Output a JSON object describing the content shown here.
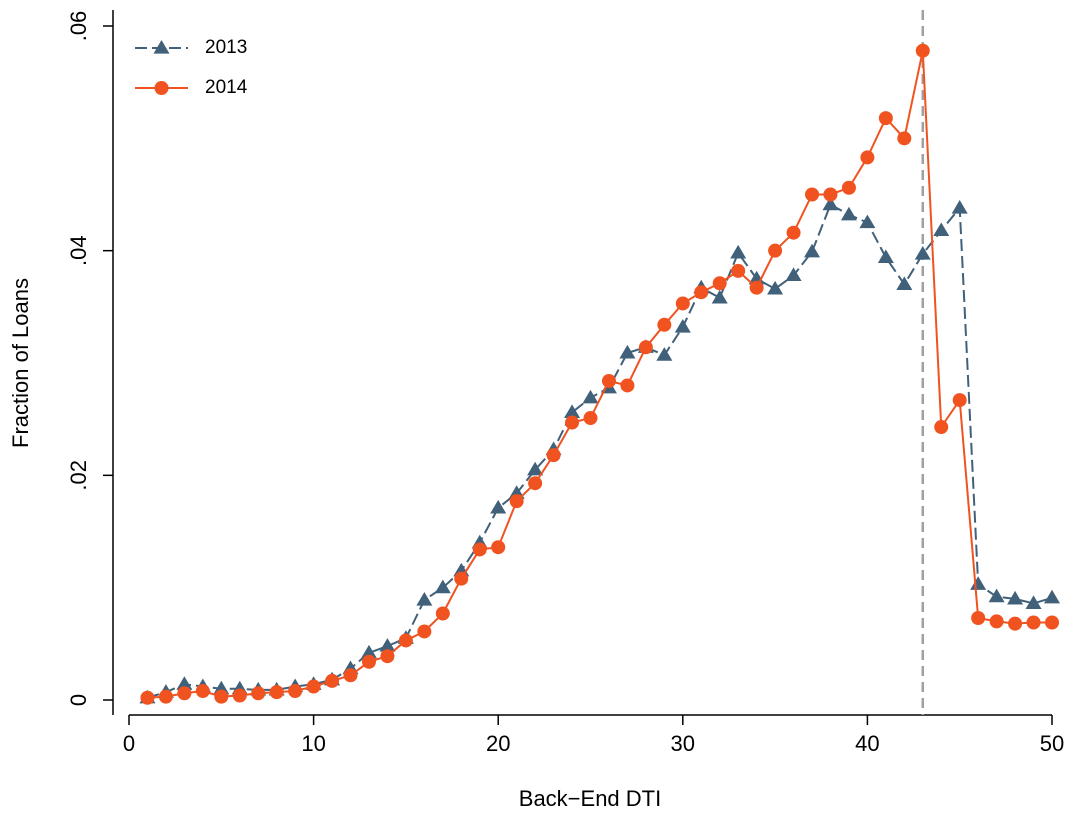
{
  "chart_data": {
    "type": "line",
    "xlabel": "Back−End DTI",
    "ylabel": "Fraction of Loans",
    "x": [
      1,
      2,
      3,
      4,
      5,
      6,
      7,
      8,
      9,
      10,
      11,
      12,
      13,
      14,
      15,
      16,
      17,
      18,
      19,
      20,
      21,
      22,
      23,
      24,
      25,
      26,
      27,
      28,
      29,
      30,
      31,
      32,
      33,
      34,
      35,
      36,
      37,
      38,
      39,
      40,
      41,
      42,
      43,
      44,
      45,
      46,
      47,
      48,
      49,
      50
    ],
    "series": [
      {
        "name": "2013",
        "color": "#41607a",
        "marker": "triangle",
        "dash": true,
        "values": [
          0.0002,
          0.0007,
          0.0014,
          0.0012,
          0.001,
          0.001,
          0.0009,
          0.0009,
          0.0012,
          0.0014,
          0.0018,
          0.0028,
          0.0042,
          0.0048,
          0.0055,
          0.0089,
          0.01,
          0.0115,
          0.014,
          0.0171,
          0.0184,
          0.0205,
          0.0223,
          0.0256,
          0.0269,
          0.0278,
          0.0309,
          0.0314,
          0.0307,
          0.0332,
          0.0367,
          0.0358,
          0.0398,
          0.0375,
          0.0366,
          0.0378,
          0.0399,
          0.0441,
          0.0432,
          0.0425,
          0.0394,
          0.037,
          0.0397,
          0.0418,
          0.0438,
          0.0103,
          0.0092,
          0.009,
          0.0086,
          0.0091
        ]
      },
      {
        "name": "2014",
        "color": "#f0531f",
        "marker": "circle",
        "dash": false,
        "values": [
          0.0002,
          0.0003,
          0.0006,
          0.0008,
          0.0003,
          0.0004,
          0.0006,
          0.0007,
          0.0008,
          0.0012,
          0.0017,
          0.0022,
          0.0034,
          0.0039,
          0.0053,
          0.0061,
          0.0077,
          0.0108,
          0.0134,
          0.0136,
          0.0177,
          0.0193,
          0.0218,
          0.0247,
          0.0251,
          0.0284,
          0.028,
          0.0314,
          0.0334,
          0.0353,
          0.0363,
          0.0371,
          0.0382,
          0.0367,
          0.04,
          0.0416,
          0.045,
          0.045,
          0.0456,
          0.0483,
          0.0518,
          0.05,
          0.0578,
          0.0243,
          0.0267,
          0.0073,
          0.007,
          0.0068,
          0.0069,
          0.0069
        ]
      }
    ],
    "xlim": [
      0,
      50
    ],
    "xticks": [
      0,
      10,
      20,
      30,
      40,
      50
    ],
    "ylim": [
      0,
      0.06
    ],
    "yticks": [
      0,
      {
        "value": 0.02,
        "label": ".02"
      },
      {
        "value": 0.04,
        "label": ".04"
      },
      {
        "value": 0.06,
        "label": ".06"
      }
    ],
    "vline": 43,
    "vline_color": "#a0a0a0",
    "legend": "top-left",
    "grid": false
  }
}
